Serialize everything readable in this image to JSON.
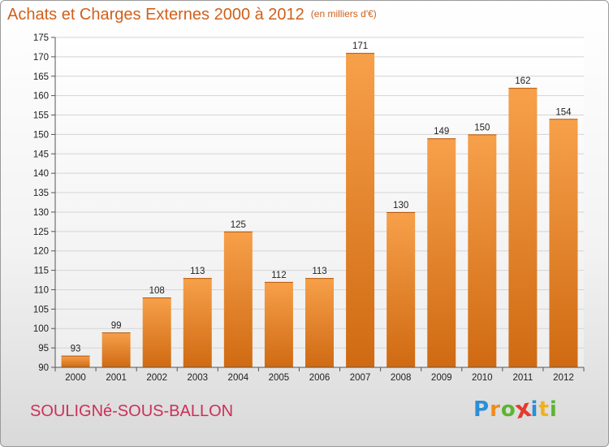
{
  "title": "Achats et Charges Externes 2000 à 2012",
  "subtitle": "(en milliers d'€)",
  "location": "SOULIGNé-SOUS-BALLON",
  "logo": {
    "letters": [
      "P",
      "r",
      "o",
      "x",
      "i",
      "t",
      "i"
    ],
    "colors": [
      "#2b8fd6",
      "#f28c1b",
      "#5bb531",
      "#e53a2f",
      "#2b8fd6",
      "#f2b01b",
      "#5bb531"
    ]
  },
  "colors": {
    "bar": "#f08a2e",
    "title": "#d0601a",
    "location": "#cc2f5a"
  },
  "chart_data": {
    "type": "bar",
    "title": "Achats et Charges Externes 2000 à 2012",
    "subtitle": "(en milliers d'€)",
    "categories": [
      "2000",
      "2001",
      "2002",
      "2003",
      "2004",
      "2005",
      "2006",
      "2007",
      "2008",
      "2009",
      "2010",
      "2011",
      "2012"
    ],
    "values": [
      93,
      99,
      108,
      113,
      125,
      112,
      113,
      171,
      130,
      149,
      150,
      162,
      154
    ],
    "ylim": [
      90,
      175
    ],
    "yticks": [
      90,
      95,
      100,
      105,
      110,
      115,
      120,
      125,
      130,
      135,
      140,
      145,
      150,
      155,
      160,
      165,
      170,
      175
    ],
    "grid": true,
    "xlabel": "",
    "ylabel": ""
  }
}
